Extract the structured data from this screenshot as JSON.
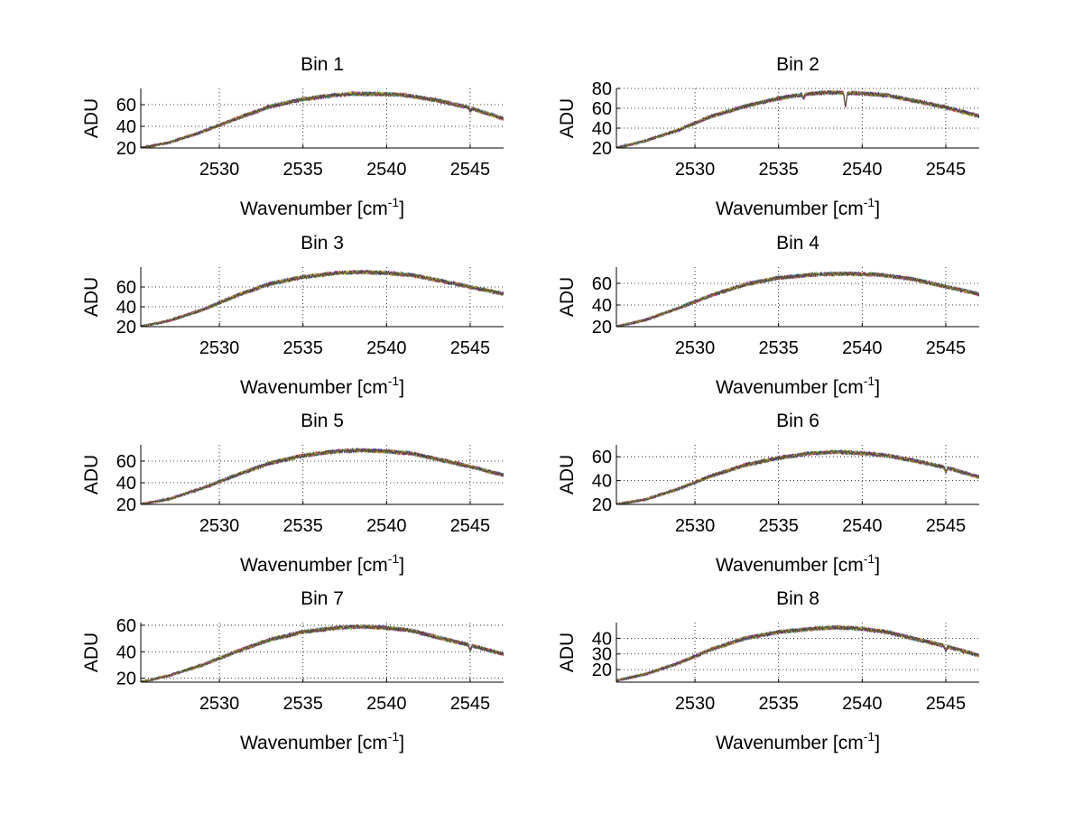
{
  "chart_data": [
    {
      "type": "line",
      "title": "Bin 1",
      "xlabel": "Wavenumber [cm",
      "xlabel_sup": "-1",
      "xlabel_end": "]",
      "ylabel": "ADU",
      "xlim": [
        2525.3,
        2547
      ],
      "ylim": [
        20,
        75
      ],
      "xticks": [
        2530,
        2535,
        2540,
        2545
      ],
      "yticks": [
        20,
        40,
        60
      ],
      "grid": true,
      "series_colors": [
        "#0000ff",
        "#008000",
        "#ff0000",
        "#00bfbf",
        "#bf00bf",
        "#bfbf00",
        "#404040"
      ],
      "profile": [
        [
          2525.3,
          20
        ],
        [
          2527,
          25
        ],
        [
          2529,
          35
        ],
        [
          2531,
          47
        ],
        [
          2533,
          58
        ],
        [
          2535,
          65
        ],
        [
          2537,
          69
        ],
        [
          2538,
          70
        ],
        [
          2539.5,
          70
        ],
        [
          2541,
          69
        ],
        [
          2543,
          64
        ],
        [
          2545,
          57
        ],
        [
          2547,
          47
        ]
      ],
      "dips": [
        [
          2545,
          3
        ]
      ]
    },
    {
      "type": "line",
      "title": "Bin 2",
      "xlabel": "Wavenumber [cm",
      "xlabel_sup": "-1",
      "xlabel_end": "]",
      "ylabel": "ADU",
      "xlim": [
        2525.3,
        2547
      ],
      "ylim": [
        20,
        80
      ],
      "xticks": [
        2530,
        2535,
        2540,
        2545
      ],
      "yticks": [
        20,
        40,
        60,
        80
      ],
      "grid": true,
      "series_colors": [
        "#0000ff",
        "#008000",
        "#ff0000",
        "#00bfbf",
        "#bf00bf",
        "#bfbf00",
        "#404040"
      ],
      "profile": [
        [
          2525.3,
          20
        ],
        [
          2527,
          27
        ],
        [
          2529,
          38
        ],
        [
          2531,
          52
        ],
        [
          2533,
          62
        ],
        [
          2535,
          70
        ],
        [
          2536.5,
          74
        ],
        [
          2538,
          76
        ],
        [
          2540,
          75
        ],
        [
          2541.5,
          73
        ],
        [
          2543,
          68
        ],
        [
          2545,
          61
        ],
        [
          2547,
          52
        ]
      ],
      "dips": [
        [
          2539,
          14
        ],
        [
          2536.5,
          4
        ]
      ]
    },
    {
      "type": "line",
      "title": "Bin 3",
      "xlabel": "Wavenumber [cm",
      "xlabel_sup": "-1",
      "xlabel_end": "]",
      "ylabel": "ADU",
      "xlim": [
        2525.3,
        2547
      ],
      "ylim": [
        20,
        80
      ],
      "xticks": [
        2530,
        2535,
        2540,
        2545
      ],
      "yticks": [
        20,
        40,
        60
      ],
      "grid": true,
      "series_colors": [
        "#0000ff",
        "#008000",
        "#ff0000",
        "#00bfbf",
        "#bf00bf",
        "#bfbf00",
        "#404040"
      ],
      "profile": [
        [
          2525.3,
          20
        ],
        [
          2527,
          26
        ],
        [
          2529,
          37
        ],
        [
          2531,
          51
        ],
        [
          2533,
          63
        ],
        [
          2535,
          70
        ],
        [
          2537,
          74
        ],
        [
          2538.5,
          75
        ],
        [
          2540,
          74
        ],
        [
          2541.5,
          72
        ],
        [
          2543,
          67
        ],
        [
          2545,
          60
        ],
        [
          2547,
          53
        ]
      ],
      "dips": []
    },
    {
      "type": "line",
      "title": "Bin 4",
      "xlabel": "Wavenumber [cm",
      "xlabel_sup": "-1",
      "xlabel_end": "]",
      "ylabel": "ADU",
      "xlim": [
        2525.3,
        2547
      ],
      "ylim": [
        20,
        75
      ],
      "xticks": [
        2530,
        2535,
        2540,
        2545
      ],
      "yticks": [
        20,
        40,
        60
      ],
      "grid": true,
      "series_colors": [
        "#0000ff",
        "#008000",
        "#ff0000",
        "#00bfbf",
        "#bf00bf",
        "#bfbf00",
        "#404040"
      ],
      "profile": [
        [
          2525.3,
          20
        ],
        [
          2527,
          26
        ],
        [
          2529,
          37
        ],
        [
          2531,
          49
        ],
        [
          2533,
          59
        ],
        [
          2535,
          65
        ],
        [
          2537,
          68
        ],
        [
          2539,
          69
        ],
        [
          2541,
          68
        ],
        [
          2543,
          64
        ],
        [
          2545,
          57
        ],
        [
          2547,
          50
        ]
      ],
      "dips": []
    },
    {
      "type": "line",
      "title": "Bin 5",
      "xlabel": "Wavenumber [cm",
      "xlabel_sup": "-1",
      "xlabel_end": "]",
      "ylabel": "ADU",
      "xlim": [
        2525.3,
        2547
      ],
      "ylim": [
        20,
        75
      ],
      "xticks": [
        2530,
        2535,
        2540,
        2545
      ],
      "yticks": [
        20,
        40,
        60
      ],
      "grid": true,
      "series_colors": [
        "#0000ff",
        "#008000",
        "#ff0000",
        "#00bfbf",
        "#bf00bf",
        "#bfbf00",
        "#404040"
      ],
      "profile": [
        [
          2525.3,
          20
        ],
        [
          2527,
          25
        ],
        [
          2529,
          35
        ],
        [
          2531,
          47
        ],
        [
          2533,
          58
        ],
        [
          2535,
          65
        ],
        [
          2537,
          69
        ],
        [
          2538.5,
          70
        ],
        [
          2540,
          69
        ],
        [
          2541.5,
          67
        ],
        [
          2543,
          62
        ],
        [
          2545,
          55
        ],
        [
          2547,
          47
        ]
      ],
      "dips": []
    },
    {
      "type": "line",
      "title": "Bin 6",
      "xlabel": "Wavenumber [cm",
      "xlabel_sup": "-1",
      "xlabel_end": "]",
      "ylabel": "ADU",
      "xlim": [
        2525.3,
        2547
      ],
      "ylim": [
        20,
        70
      ],
      "xticks": [
        2530,
        2535,
        2540,
        2545
      ],
      "yticks": [
        20,
        40,
        60
      ],
      "grid": true,
      "series_colors": [
        "#0000ff",
        "#008000",
        "#ff0000",
        "#00bfbf",
        "#bf00bf",
        "#bfbf00",
        "#404040"
      ],
      "profile": [
        [
          2525.3,
          20
        ],
        [
          2527,
          24
        ],
        [
          2529,
          33
        ],
        [
          2531,
          44
        ],
        [
          2533,
          53
        ],
        [
          2535,
          59
        ],
        [
          2537,
          63
        ],
        [
          2538.5,
          64
        ],
        [
          2540,
          63
        ],
        [
          2541.5,
          61
        ],
        [
          2543,
          57
        ],
        [
          2545,
          51
        ],
        [
          2547,
          43
        ]
      ],
      "dips": [
        [
          2545,
          4
        ]
      ]
    },
    {
      "type": "line",
      "title": "Bin 7",
      "xlabel": "Wavenumber [cm",
      "xlabel_sup": "-1",
      "xlabel_end": "]",
      "ylabel": "ADU",
      "xlim": [
        2525.3,
        2547
      ],
      "ylim": [
        17,
        62
      ],
      "xticks": [
        2530,
        2535,
        2540,
        2545
      ],
      "yticks": [
        20,
        40,
        60
      ],
      "grid": true,
      "series_colors": [
        "#0000ff",
        "#008000",
        "#ff0000",
        "#00bfbf",
        "#bf00bf",
        "#bfbf00",
        "#404040"
      ],
      "profile": [
        [
          2525.3,
          17
        ],
        [
          2527,
          22
        ],
        [
          2529,
          30
        ],
        [
          2531,
          40
        ],
        [
          2533,
          49
        ],
        [
          2535,
          55
        ],
        [
          2537,
          58
        ],
        [
          2538.5,
          59
        ],
        [
          2540,
          58
        ],
        [
          2541.5,
          56
        ],
        [
          2543,
          51
        ],
        [
          2545,
          45
        ],
        [
          2547,
          38
        ]
      ],
      "dips": [
        [
          2545,
          4
        ]
      ]
    },
    {
      "type": "line",
      "title": "Bin 8",
      "xlabel": "Wavenumber [cm",
      "xlabel_sup": "-1",
      "xlabel_end": "]",
      "ylabel": "ADU",
      "xlim": [
        2525.3,
        2547
      ],
      "ylim": [
        12,
        50
      ],
      "xticks": [
        2530,
        2535,
        2540,
        2545
      ],
      "yticks": [
        20,
        30,
        40
      ],
      "grid": true,
      "series_colors": [
        "#0000ff",
        "#008000",
        "#ff0000",
        "#00bfbf",
        "#bf00bf",
        "#bfbf00",
        "#404040"
      ],
      "profile": [
        [
          2525.3,
          13
        ],
        [
          2527,
          17
        ],
        [
          2529,
          24
        ],
        [
          2531,
          33
        ],
        [
          2533,
          40
        ],
        [
          2535,
          44
        ],
        [
          2537,
          46
        ],
        [
          2538.5,
          47
        ],
        [
          2540,
          46
        ],
        [
          2541.5,
          44
        ],
        [
          2543,
          40
        ],
        [
          2545,
          35
        ],
        [
          2547,
          29
        ]
      ],
      "dips": [
        [
          2545,
          3
        ]
      ]
    }
  ]
}
